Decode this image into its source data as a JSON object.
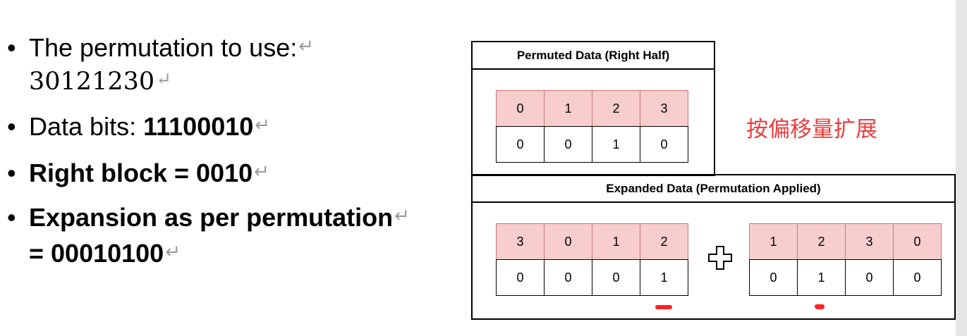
{
  "bullets": {
    "b1": {
      "label": "The permutation to use:",
      "value": "30121230"
    },
    "b2": {
      "label": "Data bits: ",
      "value": "11100010"
    },
    "b3": {
      "text": "Right block = 0010"
    },
    "b4": {
      "line1": "Expansion as per permutation",
      "line2": "= 00010100"
    },
    "paragraph_mark": "↵"
  },
  "diagram": {
    "permuted": {
      "title": "Permuted Data (Right Half)",
      "headers": [
        "0",
        "1",
        "2",
        "3"
      ],
      "bits": [
        "0",
        "0",
        "1",
        "0"
      ]
    },
    "note": "按偏移量扩展",
    "expanded": {
      "title": "Expanded Data (Permutation Applied)",
      "left": {
        "headers": [
          "3",
          "0",
          "1",
          "2"
        ],
        "bits": [
          "0",
          "0",
          "0",
          "1"
        ]
      },
      "right": {
        "headers": [
          "1",
          "2",
          "3",
          "0"
        ],
        "bits": [
          "0",
          "1",
          "0",
          "0"
        ]
      }
    },
    "colors": {
      "header_fill": "#f7cdcd",
      "note": "#ea3e3e",
      "mark": "#ff2020"
    }
  }
}
